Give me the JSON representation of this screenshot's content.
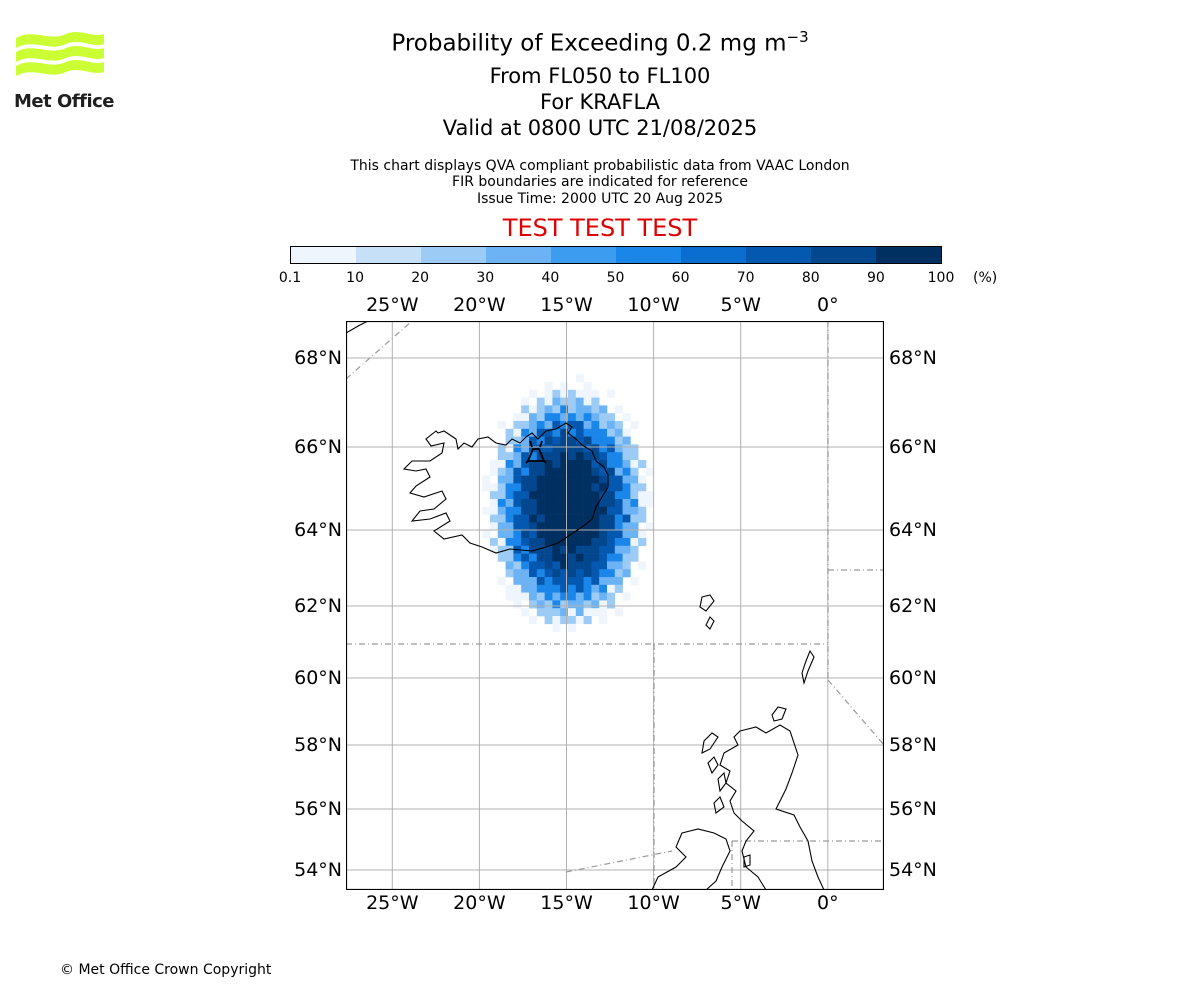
{
  "logo": {
    "text": "Met Office",
    "color": "#ccff33"
  },
  "title": {
    "line1_prefix": "Probability of Exceeding 0.2 mg m",
    "line1_sup": "−3",
    "line2": "From FL050 to FL100",
    "line3": "For KRAFLA",
    "line4": "Valid at 0800 UTC 21/08/2025"
  },
  "subtitle": {
    "line1": "This chart displays QVA compliant probabilistic data from VAAC London",
    "line2": "FIR boundaries are indicated for reference",
    "line3": "Issue Time: 2000 UTC 20 Aug 2025"
  },
  "banner": {
    "text": "TEST TEST TEST",
    "color": "#e00000"
  },
  "colorbar": {
    "ticks": [
      "0.1",
      "10",
      "20",
      "30",
      "40",
      "50",
      "60",
      "70",
      "80",
      "90",
      "100"
    ],
    "unit": "(%)",
    "colors": [
      "#eef5fc",
      "#c6e0f8",
      "#9ccbf6",
      "#6cb3f5",
      "#3c9cf0",
      "#1a86ea",
      "#0a6ed0",
      "#0558b0",
      "#03478f",
      "#002f61"
    ]
  },
  "map": {
    "lon_labels": [
      "25°W",
      "20°W",
      "15°W",
      "10°W",
      "5°W",
      "0°"
    ],
    "lon_values": [
      -25,
      -20,
      -15,
      -10,
      -5,
      0
    ],
    "lat_labels": [
      "68°N",
      "66°N",
      "64°N",
      "62°N",
      "60°N",
      "58°N",
      "56°N",
      "54°N"
    ],
    "lat_values": [
      68,
      66,
      64,
      62,
      60,
      58,
      56,
      54
    ],
    "volcano": "KRAFLA",
    "plume_levels_pct": {
      "low": 5,
      "mid": 40,
      "high": 90
    }
  },
  "footer": {
    "copyright": "© Met Office Crown Copyright"
  }
}
